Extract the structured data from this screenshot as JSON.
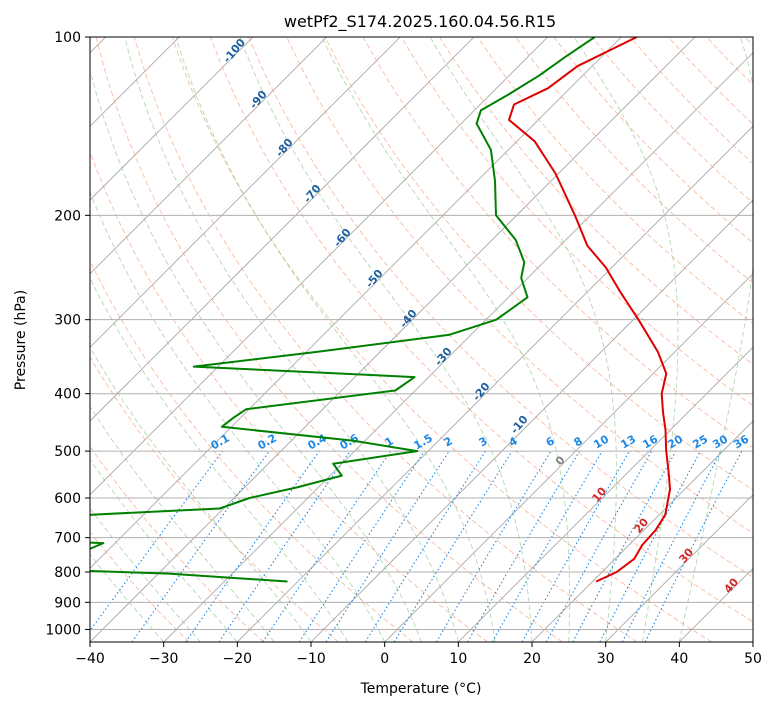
{
  "chart_data": {
    "type": "line",
    "title": "wetPf2_S174.2025.160.04.56.R15",
    "xlabel": "Temperature (°C)",
    "ylabel": "Pressure (hPa)",
    "xlim": [
      -40,
      50
    ],
    "ylim_pressure": [
      1050,
      100
    ],
    "y_scale": "log",
    "skew": true,
    "x_ticks": [
      -40,
      -30,
      -20,
      -10,
      0,
      10,
      20,
      30,
      40,
      50
    ],
    "x_tick_labels": [
      "−40",
      "−30",
      "−20",
      "−10",
      "0",
      "10",
      "20",
      "30",
      "40",
      "50"
    ],
    "y_ticks": [
      1000,
      900,
      800,
      700,
      600,
      500,
      400,
      300,
      200,
      100
    ],
    "y_tick_labels": [
      "1000",
      "900",
      "800",
      "700",
      "600",
      "500",
      "400",
      "300",
      "200",
      "100"
    ],
    "grid": true,
    "series": [
      {
        "color": "#e00000",
        "points": [
          {
            "p": 830,
            "t": 20.5
          },
          {
            "p": 800,
            "t": 22.0
          },
          {
            "p": 760,
            "t": 22.6
          },
          {
            "p": 720,
            "t": 21.8
          },
          {
            "p": 680,
            "t": 21.6
          },
          {
            "p": 640,
            "t": 20.8
          },
          {
            "p": 580,
            "t": 18.0
          },
          {
            "p": 540,
            "t": 15.3
          },
          {
            "p": 500,
            "t": 12.3
          },
          {
            "p": 460,
            "t": 9.3
          },
          {
            "p": 430,
            "t": 6.6
          },
          {
            "p": 400,
            "t": 3.9
          },
          {
            "p": 370,
            "t": 1.8
          },
          {
            "p": 340,
            "t": -2.3
          },
          {
            "p": 300,
            "t": -9.3
          },
          {
            "p": 270,
            "t": -15.4
          },
          {
            "p": 245,
            "t": -20.8
          },
          {
            "p": 225,
            "t": -26.3
          },
          {
            "p": 200,
            "t": -32.1
          },
          {
            "p": 170,
            "t": -40.4
          },
          {
            "p": 150,
            "t": -47.6
          },
          {
            "p": 138,
            "t": -54.0
          },
          {
            "p": 130,
            "t": -55.4
          },
          {
            "p": 122,
            "t": -53.0
          },
          {
            "p": 112,
            "t": -52.0
          },
          {
            "p": 100,
            "t": -47.9
          }
        ]
      },
      {
        "color": "#008000",
        "points": [
          {
            "p": 830,
            "t": -21.4
          },
          {
            "p": 805,
            "t": -38.6
          },
          {
            "p": 790,
            "t": -58.6
          },
          {
            "p": 765,
            "t": -62.5
          },
          {
            "p": 745,
            "t": -59.4
          },
          {
            "p": 730,
            "t": -52.6
          },
          {
            "p": 715,
            "t": -51.6
          },
          {
            "p": 700,
            "t": -71.4
          },
          {
            "p": 668,
            "t": -73.8
          },
          {
            "p": 640,
            "t": -56.8
          },
          {
            "p": 625,
            "t": -40.5
          },
          {
            "p": 600,
            "t": -37.9
          },
          {
            "p": 575,
            "t": -32.8
          },
          {
            "p": 550,
            "t": -28.4
          },
          {
            "p": 525,
            "t": -31.2
          },
          {
            "p": 500,
            "t": -21.5
          },
          {
            "p": 480,
            "t": -31.7
          },
          {
            "p": 455,
            "t": -51.3
          },
          {
            "p": 440,
            "t": -51.0
          },
          {
            "p": 425,
            "t": -50.4
          },
          {
            "p": 395,
            "t": -32.7
          },
          {
            "p": 375,
            "t": -31.9
          },
          {
            "p": 360,
            "t": -63.3
          },
          {
            "p": 340,
            "t": -48.6
          },
          {
            "p": 318,
            "t": -32.9
          },
          {
            "p": 300,
            "t": -28.6
          },
          {
            "p": 275,
            "t": -27.4
          },
          {
            "p": 255,
            "t": -30.9
          },
          {
            "p": 240,
            "t": -32.6
          },
          {
            "p": 220,
            "t": -36.8
          },
          {
            "p": 200,
            "t": -42.8
          },
          {
            "p": 175,
            "t": -47.6
          },
          {
            "p": 155,
            "t": -52.4
          },
          {
            "p": 140,
            "t": -57.9
          },
          {
            "p": 133,
            "t": -59.1
          },
          {
            "p": 125,
            "t": -57.5
          },
          {
            "p": 116,
            "t": -55.9
          },
          {
            "p": 108,
            "t": -54.9
          },
          {
            "p": 100,
            "t": -53.6
          }
        ]
      }
    ],
    "dry_adiabat_labels": [
      "-100",
      "-90",
      "-80",
      "-70",
      "-60",
      "-50",
      "-40",
      "-30",
      "-20",
      "-10",
      "0",
      "10",
      "20",
      "30",
      "40"
    ],
    "mixing_ratio_labels": [
      "0.1",
      "0.2",
      "0.4",
      "0.6",
      "1",
      "1.5",
      "2",
      "3",
      "4",
      "6",
      "8",
      "10",
      "13",
      "16",
      "20",
      "25",
      "30",
      "36"
    ],
    "colors": {
      "temperature": "#e00000",
      "dewpoint": "#008000",
      "dry_adiabat": "#f4a582",
      "moist_adiabat": "#8fc98f",
      "mixing_ratio": "#1e88e5",
      "isotherm": "#a0a0a0",
      "label_cold": "#1f5f9f",
      "label_warm": "#d62728"
    }
  }
}
